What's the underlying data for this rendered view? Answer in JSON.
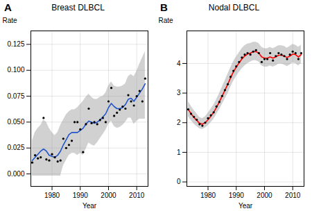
{
  "chart_data": [
    {
      "type": "line",
      "title": "Breast DLBCL",
      "annotations": [
        "A"
      ],
      "xlabel": "Year",
      "ylabel": "Rate",
      "x": [
        1973,
        1974,
        1975,
        1976,
        1977,
        1978,
        1979,
        1980,
        1981,
        1982,
        1983,
        1984,
        1985,
        1986,
        1987,
        1988,
        1989,
        1990,
        1991,
        1992,
        1993,
        1994,
        1995,
        1996,
        1997,
        1998,
        1999,
        2000,
        2001,
        2002,
        2003,
        2004,
        2005,
        2006,
        2007,
        2008,
        2009,
        2010,
        2011,
        2012,
        2013
      ],
      "series": [
        {
          "type": "area",
          "color": "#999999",
          "low": [
            -0.002,
            -0.002,
            -0.002,
            -0.002,
            -0.002,
            -0.002,
            -0.002,
            -0.002,
            -0.002,
            -0.002,
            -0.002,
            0.008,
            0.013,
            0.018,
            0.02,
            0.02,
            0.018,
            0.02,
            0.018,
            0.024,
            0.03,
            0.028,
            0.027,
            0.03,
            0.034,
            0.038,
            0.042,
            0.048,
            0.051,
            0.046,
            0.044,
            0.045,
            0.047,
            0.05,
            0.054,
            0.054,
            0.048,
            0.051,
            0.053,
            0.053,
            0.053
          ],
          "high": [
            0.032,
            0.04,
            0.044,
            0.047,
            0.052,
            0.05,
            0.044,
            0.04,
            0.037,
            0.04,
            0.047,
            0.052,
            0.057,
            0.06,
            0.062,
            0.062,
            0.064,
            0.067,
            0.07,
            0.074,
            0.077,
            0.074,
            0.072,
            0.072,
            0.074,
            0.075,
            0.078,
            0.085,
            0.089,
            0.085,
            0.084,
            0.084,
            0.085,
            0.087,
            0.094,
            0.096,
            0.094,
            0.099,
            0.106,
            0.112,
            0.118
          ]
        },
        {
          "type": "line",
          "color": "#2255cc",
          "values": [
            0.013,
            0.016,
            0.019,
            0.022,
            0.024,
            0.022,
            0.018,
            0.017,
            0.016,
            0.018,
            0.022,
            0.028,
            0.033,
            0.038,
            0.04,
            0.04,
            0.04,
            0.042,
            0.044,
            0.048,
            0.051,
            0.05,
            0.049,
            0.05,
            0.052,
            0.055,
            0.058,
            0.064,
            0.068,
            0.065,
            0.063,
            0.063,
            0.064,
            0.067,
            0.072,
            0.073,
            0.07,
            0.074,
            0.078,
            0.082,
            0.087
          ]
        },
        {
          "type": "scatter",
          "color": "#000000",
          "marker": "circle",
          "values": [
            0.011,
            0.018,
            0.015,
            0.016,
            0.054,
            0.014,
            0.013,
            0.019,
            0.016,
            0.012,
            0.013,
            0.034,
            0.025,
            0.028,
            0.032,
            0.05,
            0.05,
            0.043,
            0.021,
            0.048,
            0.063,
            0.049,
            0.05,
            0.048,
            0.052,
            0.054,
            0.05,
            0.07,
            0.083,
            0.056,
            0.059,
            0.062,
            0.065,
            0.063,
            0.076,
            0.07,
            0.066,
            0.075,
            0.08,
            0.07,
            0.092
          ]
        }
      ],
      "xlim": [
        1972.5,
        2014
      ],
      "xticks": [
        1980,
        1990,
        2000,
        2010
      ],
      "ylim": [
        -0.012,
        0.138
      ],
      "yticks": [
        {
          "value": 0,
          "label": "0.000"
        },
        0.025,
        {
          "value": 0.05,
          "label": "0.050"
        },
        0.075,
        {
          "value": 0.1,
          "label": "0.100"
        },
        0.125
      ],
      "grid": true
    },
    {
      "type": "line",
      "title": "Nodal DLBCL",
      "annotations": [
        "B"
      ],
      "xlabel": "Year",
      "ylabel": "Rate",
      "x": [
        1973,
        1974,
        1975,
        1976,
        1977,
        1978,
        1979,
        1980,
        1981,
        1982,
        1983,
        1984,
        1985,
        1986,
        1987,
        1988,
        1989,
        1990,
        1991,
        1992,
        1993,
        1994,
        1995,
        1996,
        1997,
        1998,
        1999,
        2000,
        2001,
        2002,
        2003,
        2004,
        2005,
        2006,
        2007,
        2008,
        2009,
        2010,
        2011,
        2012,
        2013
      ],
      "series": [
        {
          "type": "area",
          "color": "#999999",
          "low": [
            2.2,
            2.08,
            1.96,
            1.88,
            1.8,
            1.78,
            1.82,
            1.9,
            2.0,
            2.12,
            2.28,
            2.44,
            2.62,
            2.8,
            2.98,
            3.2,
            3.4,
            3.56,
            3.7,
            3.82,
            3.92,
            4.0,
            4.05,
            4.1,
            4.1,
            4.05,
            3.92,
            3.88,
            3.88,
            3.92,
            3.88,
            3.92,
            3.98,
            3.98,
            3.95,
            3.9,
            3.95,
            4.02,
            4.0,
            3.92,
            4.0
          ],
          "high": [
            2.72,
            2.55,
            2.42,
            2.3,
            2.18,
            2.14,
            2.2,
            2.32,
            2.46,
            2.6,
            2.78,
            2.98,
            3.2,
            3.42,
            3.64,
            3.86,
            4.06,
            4.22,
            4.36,
            4.5,
            4.6,
            4.66,
            4.68,
            4.72,
            4.72,
            4.68,
            4.55,
            4.5,
            4.5,
            4.55,
            4.5,
            4.55,
            4.6,
            4.6,
            4.58,
            4.52,
            4.58,
            4.65,
            4.62,
            4.55,
            4.62
          ]
        },
        {
          "type": "line",
          "color": "#ff0000",
          "values": [
            2.45,
            2.3,
            2.18,
            2.08,
            1.98,
            1.95,
            2.0,
            2.1,
            2.22,
            2.35,
            2.52,
            2.7,
            2.9,
            3.1,
            3.3,
            3.52,
            3.72,
            3.88,
            4.02,
            4.15,
            4.25,
            4.32,
            4.35,
            4.4,
            4.4,
            4.35,
            4.22,
            4.18,
            4.18,
            4.22,
            4.18,
            4.22,
            4.28,
            4.28,
            4.25,
            4.2,
            4.25,
            4.32,
            4.3,
            4.22,
            4.3
          ]
        },
        {
          "type": "scatter",
          "color": "#000000",
          "marker": "circle",
          "values": [
            2.45,
            2.3,
            2.2,
            2.1,
            1.95,
            1.9,
            2.0,
            2.15,
            2.25,
            2.35,
            2.55,
            2.7,
            2.9,
            3.1,
            3.3,
            3.55,
            3.75,
            3.9,
            4.05,
            4.2,
            4.3,
            4.35,
            4.3,
            4.4,
            4.45,
            4.35,
            4.05,
            4.15,
            4.15,
            4.35,
            4.1,
            4.25,
            4.35,
            4.3,
            4.25,
            4.15,
            4.3,
            4.4,
            4.35,
            4.15,
            4.35
          ]
        }
      ],
      "xlim": [
        1972.5,
        2014
      ],
      "xticks": [
        1980,
        1990,
        2000,
        2010
      ],
      "ylim": [
        -0.15,
        5.1
      ],
      "yticks": [
        0,
        1,
        2,
        3,
        4
      ],
      "grid": true
    }
  ]
}
